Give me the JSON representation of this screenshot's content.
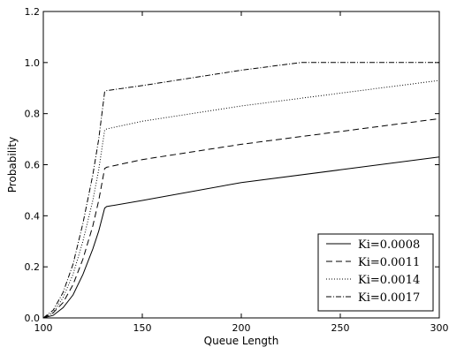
{
  "chart_data": {
    "type": "line",
    "title": "",
    "xlabel": "Queue Length",
    "ylabel": "Probability",
    "xlim": [
      100,
      300
    ],
    "ylim": [
      0,
      1.2
    ],
    "xticks": [
      "100",
      "150",
      "200",
      "250",
      "300"
    ],
    "yticks": [
      "0.0",
      "0.2",
      "0.4",
      "0.6",
      "0.8",
      "1.0",
      "1.2"
    ],
    "grid": false,
    "legend_position": "lower-right",
    "series": [
      {
        "name": "Ki=0.0008",
        "style": "solid",
        "points": [
          [
            100,
            0.0
          ],
          [
            105,
            0.01
          ],
          [
            110,
            0.04
          ],
          [
            115,
            0.09
          ],
          [
            120,
            0.17
          ],
          [
            125,
            0.27
          ],
          [
            128,
            0.34
          ],
          [
            131,
            0.43
          ],
          [
            132,
            0.436
          ],
          [
            150,
            0.46
          ],
          [
            200,
            0.53
          ],
          [
            250,
            0.58
          ],
          [
            300,
            0.63
          ]
        ]
      },
      {
        "name": "Ki=0.0011",
        "style": "dashed",
        "points": [
          [
            100,
            0.0
          ],
          [
            105,
            0.02
          ],
          [
            110,
            0.06
          ],
          [
            115,
            0.13
          ],
          [
            120,
            0.23
          ],
          [
            125,
            0.36
          ],
          [
            128,
            0.46
          ],
          [
            131,
            0.585
          ],
          [
            132,
            0.59
          ],
          [
            150,
            0.62
          ],
          [
            200,
            0.68
          ],
          [
            250,
            0.73
          ],
          [
            300,
            0.78
          ]
        ]
      },
      {
        "name": "Ki=0.0014",
        "style": "dotted",
        "points": [
          [
            100,
            0.0
          ],
          [
            105,
            0.02
          ],
          [
            110,
            0.08
          ],
          [
            115,
            0.17
          ],
          [
            120,
            0.3
          ],
          [
            125,
            0.46
          ],
          [
            128,
            0.58
          ],
          [
            131,
            0.735
          ],
          [
            132,
            0.74
          ],
          [
            150,
            0.77
          ],
          [
            200,
            0.83
          ],
          [
            250,
            0.88
          ],
          [
            300,
            0.93
          ]
        ]
      },
      {
        "name": "Ki=0.0017",
        "style": "dashdot",
        "points": [
          [
            100,
            0.0
          ],
          [
            105,
            0.03
          ],
          [
            110,
            0.1
          ],
          [
            115,
            0.21
          ],
          [
            120,
            0.37
          ],
          [
            125,
            0.56
          ],
          [
            128,
            0.7
          ],
          [
            131,
            0.885
          ],
          [
            132,
            0.89
          ],
          [
            150,
            0.91
          ],
          [
            200,
            0.97
          ],
          [
            230,
            1.0
          ],
          [
            250,
            1.0
          ],
          [
            300,
            1.0
          ]
        ]
      }
    ]
  }
}
